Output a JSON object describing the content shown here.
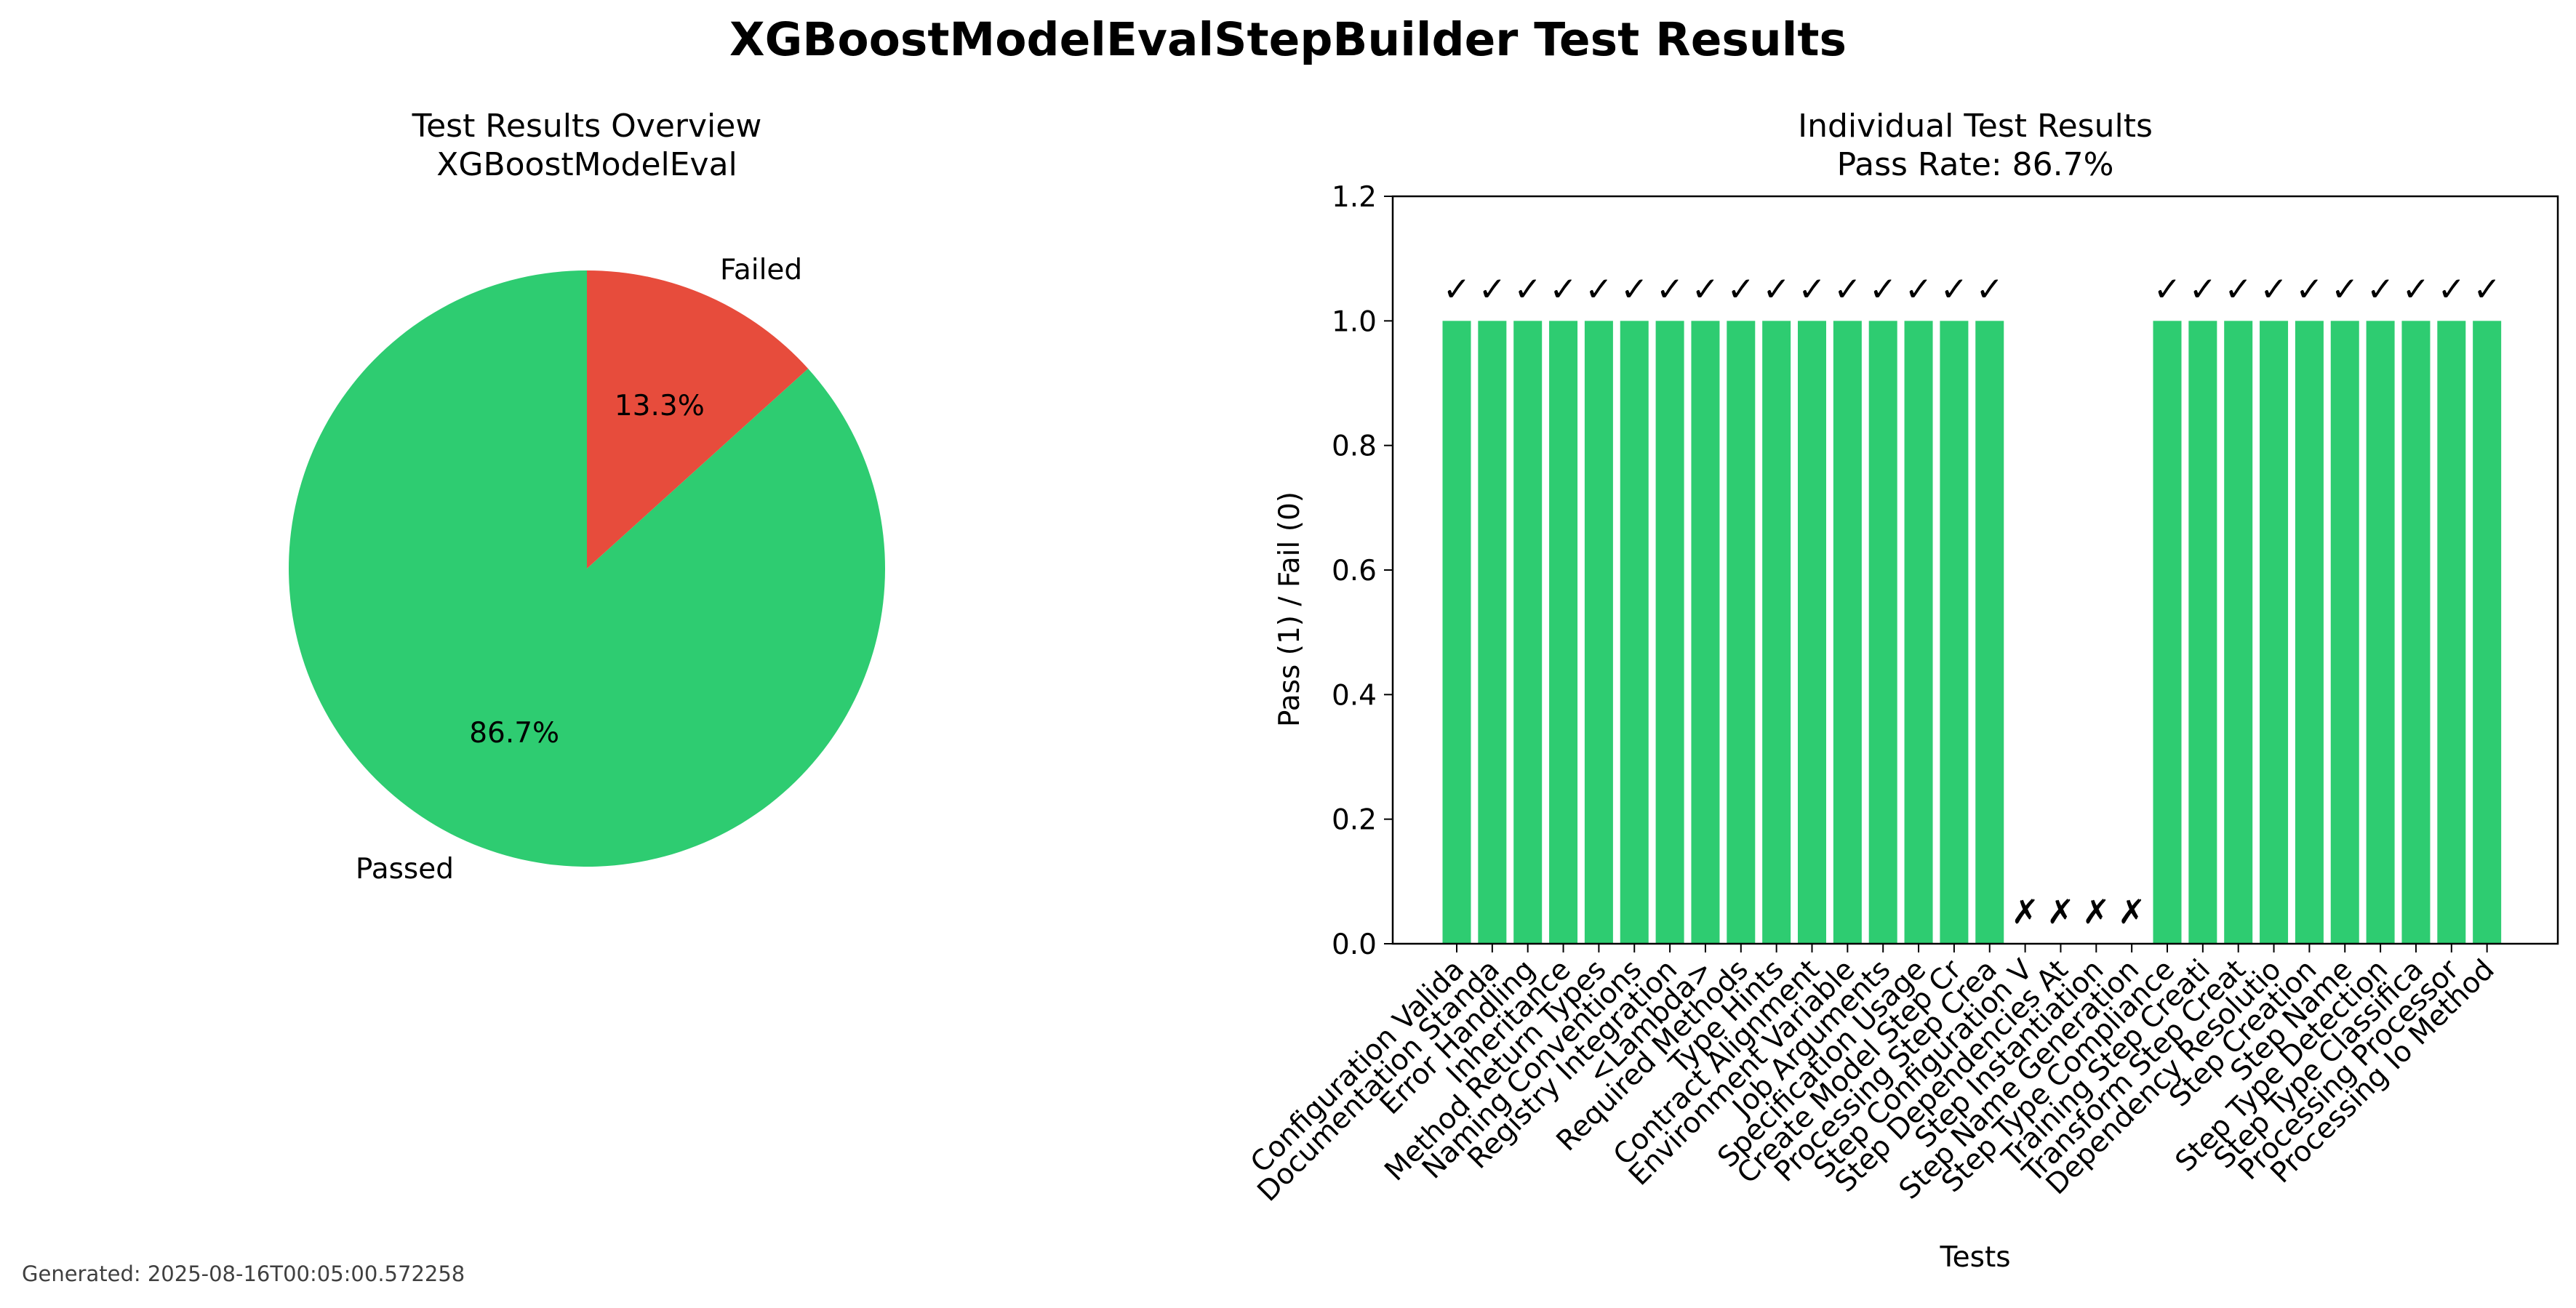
{
  "figure": {
    "title": "XGBoostModelEvalStepBuilder Test Results",
    "footer": "Generated: 2025-08-16T00:05:00.572258"
  },
  "colors": {
    "pass": "#2ecc71",
    "fail": "#e74c3c",
    "axis": "#000000",
    "footer": "#404040"
  },
  "chart_data": [
    {
      "type": "pie",
      "title": "Test Results Overview\nXGBoostModelEval",
      "slices": [
        {
          "label": "Passed",
          "value": 86.7,
          "pct_label": "86.7%",
          "color": "#2ecc71"
        },
        {
          "label": "Failed",
          "value": 13.3,
          "pct_label": "13.3%",
          "color": "#e74c3c"
        }
      ],
      "start_angle_deg": 90,
      "direction": "counterclockwise"
    },
    {
      "type": "bar",
      "title": "Individual Test Results\nPass Rate: 86.7%",
      "xlabel": "Tests",
      "ylabel": "Pass (1) / Fail (0)",
      "ylim": [
        0,
        1.2
      ],
      "yticks": [
        "0.0",
        "0.2",
        "0.4",
        "0.6",
        "0.8",
        "1.0",
        "1.2"
      ],
      "pass_symbol": "✓",
      "fail_symbol": "✗",
      "categories": [
        "Configuration Valida",
        "Documentation Standa",
        "Error Handling",
        "Inheritance",
        "Method Return Types",
        "Naming Conventions",
        "Registry Integration",
        "<Lambda>",
        "Required Methods",
        "Type Hints",
        "Contract Alignment",
        "Environment Variable",
        "Job Arguments",
        "Specification Usage",
        "Create Model Step Cr",
        "Processing Step Crea",
        "Step Configuration V",
        "Step Dependencies At",
        "Step Instantiation",
        "Step Name Generation",
        "Step Type Compliance",
        "Training Step Creati",
        "Transform Step Creat",
        "Dependency Resolutio",
        "Step Creation",
        "Step Name",
        "Step Type Detection",
        "Step Type Classifica",
        "Processing Processor",
        "Processing Io Method"
      ],
      "values": [
        1,
        1,
        1,
        1,
        1,
        1,
        1,
        1,
        1,
        1,
        1,
        1,
        1,
        1,
        1,
        1,
        0,
        0,
        0,
        0,
        1,
        1,
        1,
        1,
        1,
        1,
        1,
        1,
        1,
        1
      ],
      "grid": false,
      "legend": "none"
    }
  ]
}
